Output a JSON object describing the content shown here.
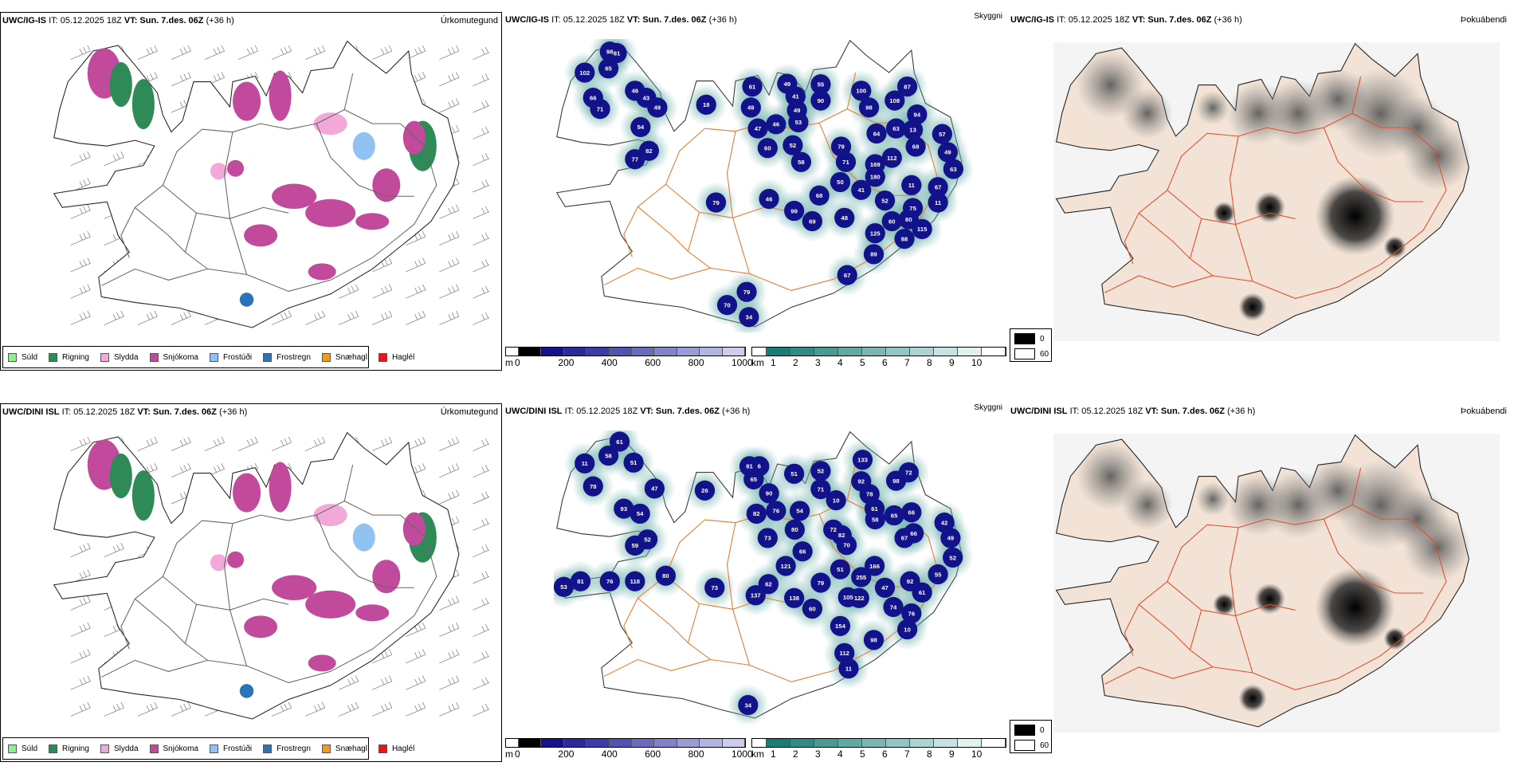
{
  "rows": [
    {
      "model": "UWC/IG-IS",
      "issue": "IT: 05.12.2025 18Z",
      "valid_label": "VT:",
      "valid": "Sun. 7.des. 06Z",
      "lead": "(+36 h)",
      "vis_labels": [
        "98",
        "81",
        "65",
        "102",
        "66",
        "71",
        "46",
        "43",
        "49",
        "54",
        "82",
        "77",
        "18",
        "61",
        "49",
        "47",
        "46",
        "60",
        "49",
        "41",
        "49",
        "53",
        "52",
        "58",
        "55",
        "90",
        "100",
        "98",
        "108",
        "87",
        "64",
        "63",
        "94",
        "13",
        "68",
        "57",
        "49",
        "63",
        "79",
        "71",
        "169",
        "112",
        "180",
        "50",
        "41",
        "52",
        "11",
        "67",
        "11",
        "68",
        "46",
        "79",
        "99",
        "69",
        "48",
        "60",
        "80",
        "75",
        "115",
        "125",
        "88",
        "89",
        "67",
        "79",
        "70",
        "34"
      ]
    },
    {
      "model": "UWC/DINI ISL",
      "issue": "IT: 05.12.2025 18Z",
      "valid_label": "VT:",
      "valid": "Sun. 7.des. 06Z",
      "lead": "(+36 h)",
      "vis_labels": [
        "61",
        "58",
        "51",
        "11",
        "78",
        "47",
        "93",
        "54",
        "52",
        "59",
        "80",
        "53",
        "81",
        "76",
        "118",
        "26",
        "73",
        "81",
        "6",
        "65",
        "90",
        "82",
        "76",
        "73",
        "51",
        "54",
        "80",
        "66",
        "121",
        "62",
        "137",
        "138",
        "52",
        "71",
        "10",
        "133",
        "92",
        "98",
        "72",
        "78",
        "61",
        "58",
        "65",
        "66",
        "72",
        "82",
        "70",
        "166",
        "51",
        "255",
        "79",
        "47",
        "105",
        "122",
        "74",
        "60",
        "154",
        "98",
        "112",
        "11",
        "92",
        "61",
        "76",
        "10",
        "42",
        "49",
        "52",
        "55",
        "67",
        "66",
        "34"
      ]
    }
  ],
  "panels": {
    "precip_title": "Úrkomutegund",
    "vis_title": "Skyggni",
    "fog_title": "Þokuábendi"
  },
  "precip_legend": [
    {
      "label": "Súld",
      "color": "#8ef08e"
    },
    {
      "label": "Rigning",
      "color": "#2e8b57"
    },
    {
      "label": "Slydda",
      "color": "#f2a9d9"
    },
    {
      "label": "Snjókoma",
      "color": "#c24a9c"
    },
    {
      "label": "Frostúði",
      "color": "#90c2f2"
    },
    {
      "label": "Frostregn",
      "color": "#2a73b8"
    },
    {
      "label": "Snæhagl",
      "color": "#f29a1a"
    },
    {
      "label": "Haglél",
      "color": "#e3171c"
    }
  ],
  "ceiling_bar": {
    "unit": "m",
    "ticks": [
      "0",
      "200",
      "400",
      "600",
      "800",
      "1000"
    ],
    "colors": [
      "#000000",
      "#141488",
      "#2a2a98",
      "#3c3ca4",
      "#5252b0",
      "#6b6bbc",
      "#8282c8",
      "#9c9cd4",
      "#b4b4e0",
      "#ccccec"
    ]
  },
  "vis_bar": {
    "unit": "km",
    "ticks": [
      "1",
      "2",
      "3",
      "4",
      "5",
      "6",
      "7",
      "8",
      "9",
      "10"
    ],
    "colors": [
      "#1e7b74",
      "#338a84",
      "#4a9993",
      "#62a8a3",
      "#7ab7b2",
      "#93c6c2",
      "#acd5d1",
      "#c6e3e1",
      "#e0f1f0",
      "#ffffff"
    ]
  },
  "fog_legend": [
    {
      "label": "0",
      "color": "#000000"
    },
    {
      "label": "60",
      "color": "#ffffff"
    }
  ]
}
